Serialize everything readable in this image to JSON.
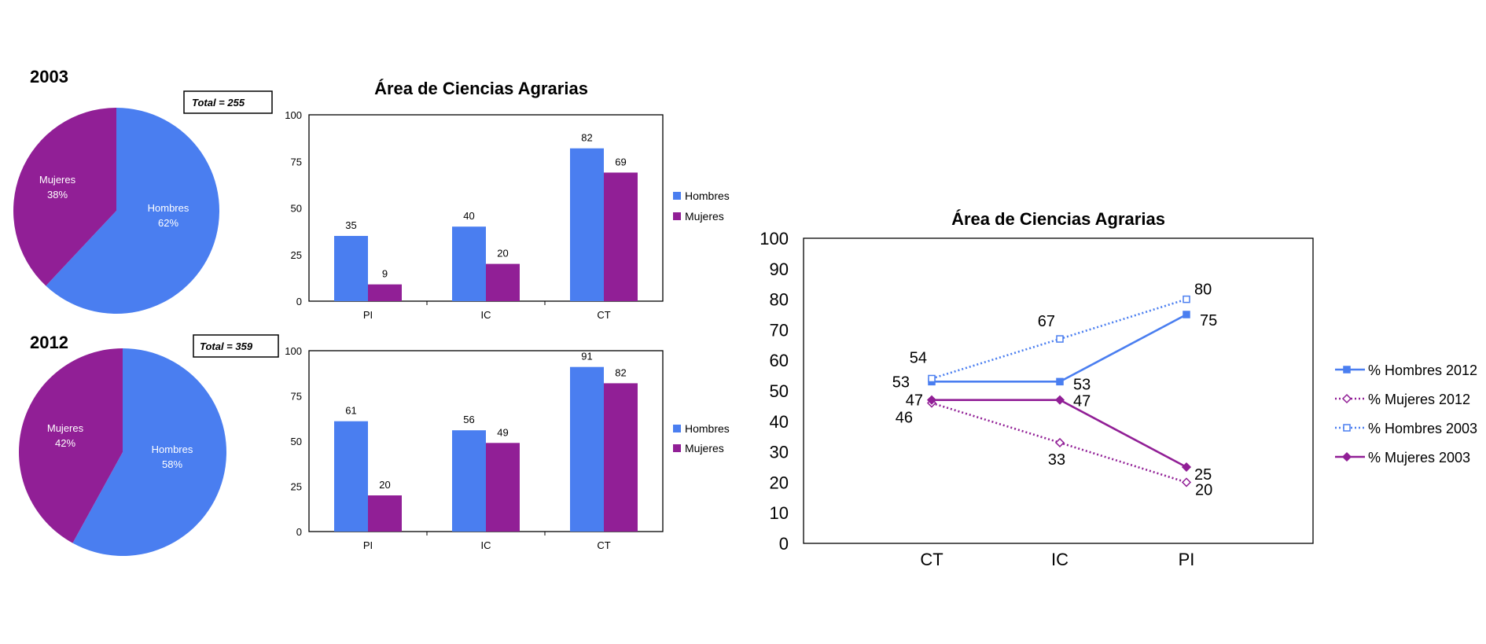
{
  "colors": {
    "hombres": "#4a7ef0",
    "mujeres": "#911f96"
  },
  "chart_data": [
    {
      "type": "pie",
      "year": "2003",
      "total": "Total = 255",
      "slices": [
        {
          "label": "Hombres",
          "value": 62,
          "pct": "62%"
        },
        {
          "label": "Mujeres",
          "value": 38,
          "pct": "38%"
        }
      ]
    },
    {
      "type": "bar",
      "title": "Área de Ciencias Agrarias",
      "categories": [
        "PI",
        "IC",
        "CT"
      ],
      "ylim": [
        0,
        100
      ],
      "yticks": [
        "0",
        "25",
        "50",
        "75",
        "100"
      ],
      "series": [
        {
          "name": "Hombres",
          "values": [
            35,
            40,
            82
          ]
        },
        {
          "name": "Mujeres",
          "values": [
            9,
            20,
            69
          ]
        }
      ]
    },
    {
      "type": "pie",
      "year": "2012",
      "total": "Total = 359",
      "slices": [
        {
          "label": "Hombres",
          "value": 58,
          "pct": "58%"
        },
        {
          "label": "Mujeres",
          "value": 42,
          "pct": "42%"
        }
      ]
    },
    {
      "type": "bar",
      "title": "",
      "categories": [
        "PI",
        "IC",
        "CT"
      ],
      "ylim": [
        0,
        100
      ],
      "yticks": [
        "0",
        "25",
        "50",
        "75",
        "100"
      ],
      "series": [
        {
          "name": "Hombres",
          "values": [
            61,
            56,
            91
          ]
        },
        {
          "name": "Mujeres",
          "values": [
            20,
            49,
            82
          ]
        }
      ]
    },
    {
      "type": "line",
      "title": "Área de Ciencias Agrarias",
      "categories": [
        "CT",
        "IC",
        "PI"
      ],
      "ylim": [
        0,
        100
      ],
      "yticks": [
        "0",
        "10",
        "20",
        "30",
        "40",
        "50",
        "60",
        "70",
        "80",
        "90",
        "100"
      ],
      "series": [
        {
          "name": "% Hombres 2012",
          "values": [
            53,
            53,
            75
          ]
        },
        {
          "name": "% Mujeres 2012",
          "values": [
            46,
            33,
            20
          ]
        },
        {
          "name": "% Hombres 2003",
          "values": [
            54,
            67,
            80
          ]
        },
        {
          "name": "% Mujeres 2003",
          "values": [
            47,
            47,
            25
          ]
        }
      ]
    }
  ]
}
